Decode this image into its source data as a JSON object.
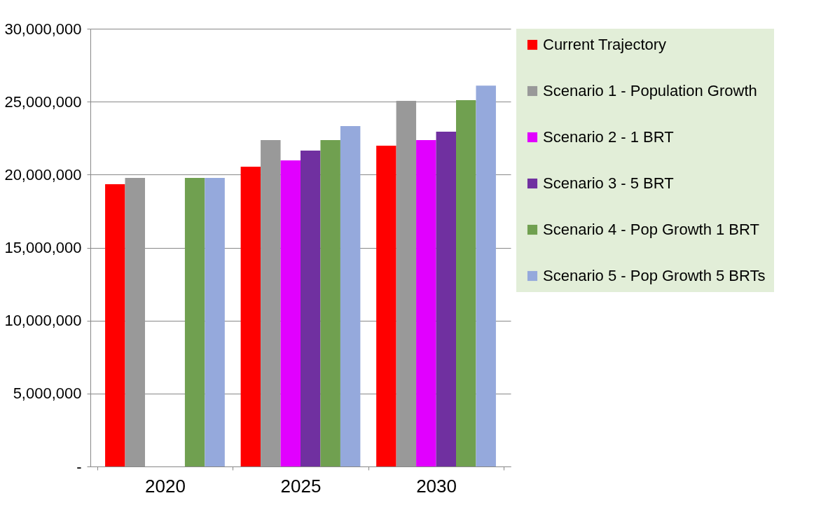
{
  "chart_data": {
    "type": "bar",
    "categories": [
      "2020",
      "2025",
      "2030"
    ],
    "series": [
      {
        "name": "Current Trajectory",
        "color": "#ff0000",
        "values": [
          19350000,
          20550000,
          21990000
        ]
      },
      {
        "name": "Scenario 1 - Population Growth",
        "color": "#999999",
        "values": [
          19780000,
          22370000,
          25060000
        ]
      },
      {
        "name": "Scenario 2 - 1 BRT",
        "color": "#e100ff",
        "values": [
          null,
          20980000,
          22370000
        ]
      },
      {
        "name": "Scenario 3 - 5 BRT",
        "color": "#7030a0",
        "values": [
          null,
          21650000,
          22950000
        ]
      },
      {
        "name": "Scenario 4 - Pop Growth 1 BRT",
        "color": "#70a050",
        "values": [
          19780000,
          22370000,
          25100000
        ]
      },
      {
        "name": "Scenario 5 - Pop Growth 5 BRTs",
        "color": "#95a9dc",
        "values": [
          19780000,
          23330000,
          26100000
        ]
      }
    ],
    "ylim": [
      0,
      30000000
    ],
    "yticks": [
      {
        "value": 0,
        "label": "-"
      },
      {
        "value": 5000000,
        "label": "5,000,000"
      },
      {
        "value": 10000000,
        "label": "10,000,000"
      },
      {
        "value": 15000000,
        "label": "15,000,000"
      },
      {
        "value": 20000000,
        "label": "20,000,000"
      },
      {
        "value": 25000000,
        "label": "25,000,000"
      },
      {
        "value": 30000000,
        "label": "30,000,000"
      }
    ],
    "grid": "y",
    "legend": "right"
  }
}
